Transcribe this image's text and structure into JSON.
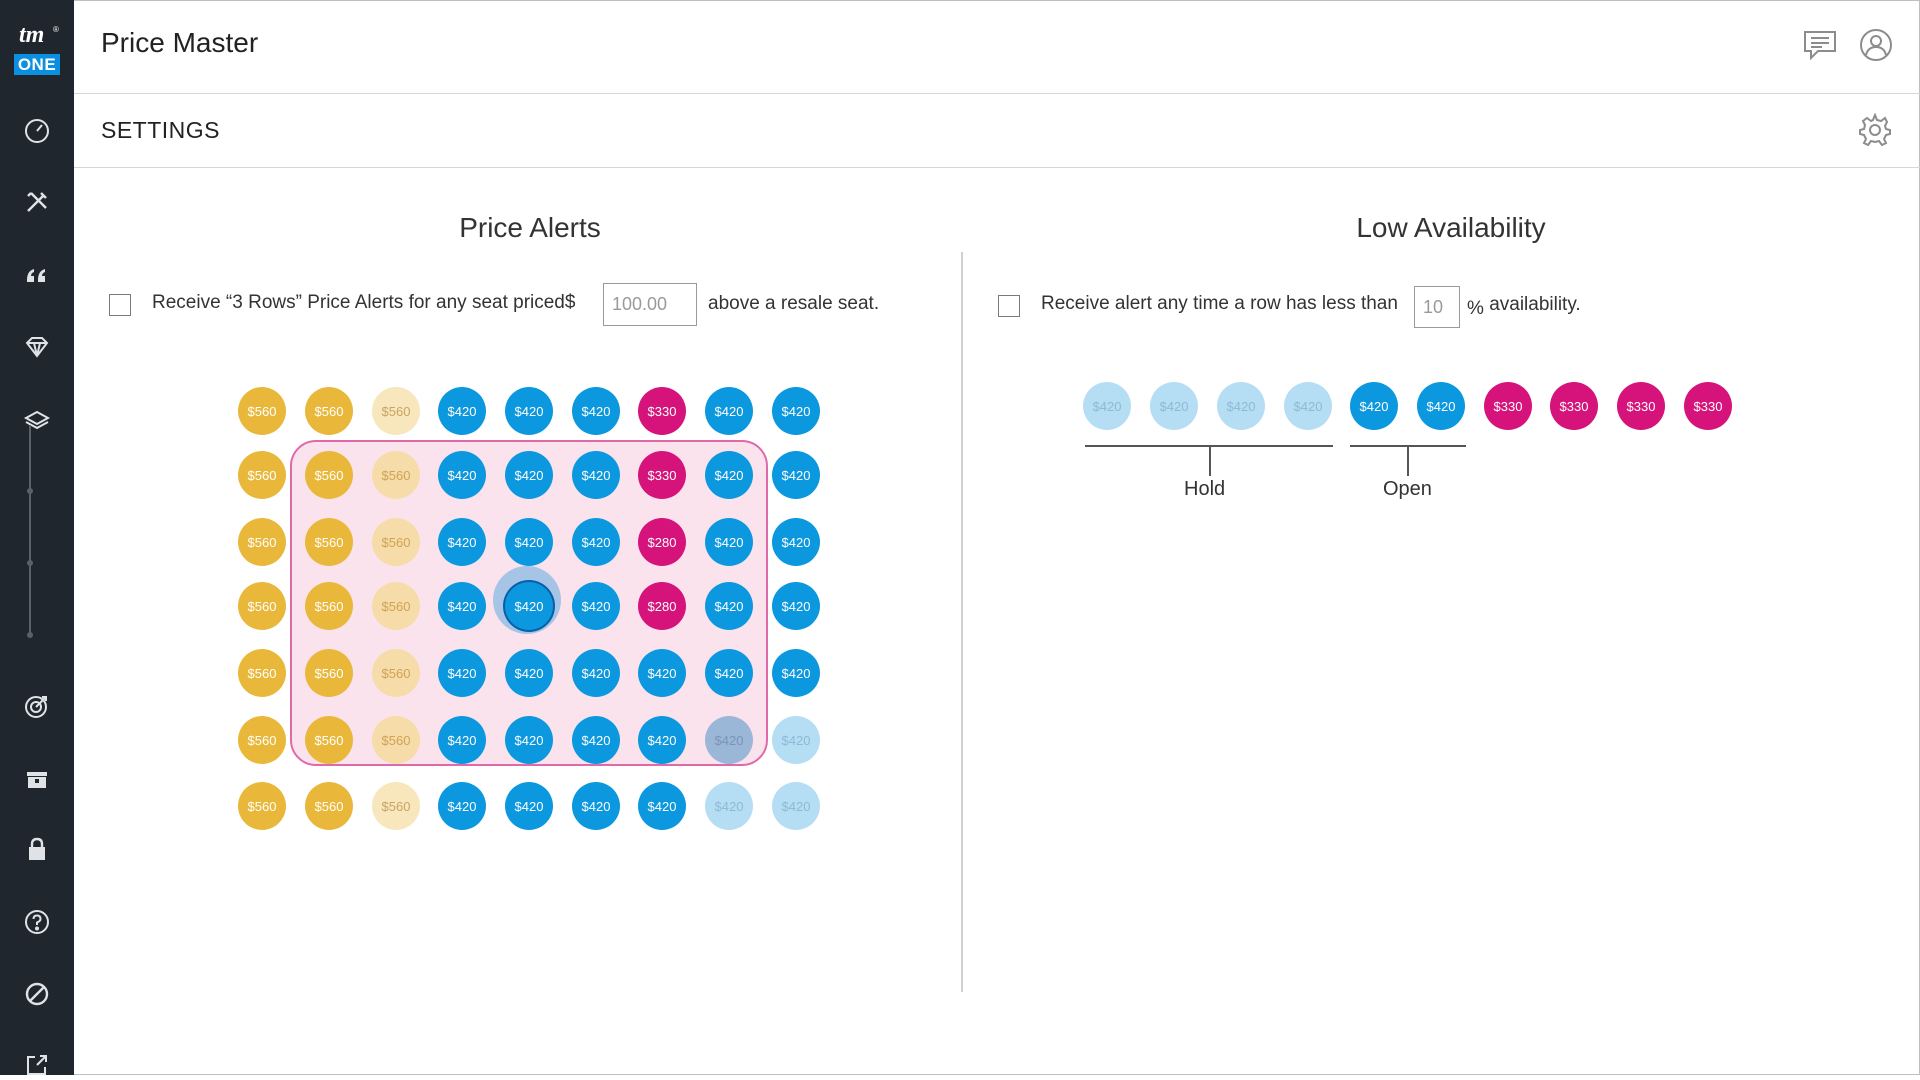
{
  "logo": {
    "tm": "tm",
    "reg": "®",
    "one": "ONE"
  },
  "sidebar": {
    "items": [
      {
        "name": "dashboard",
        "icon": "speedometer-icon"
      },
      {
        "name": "tools",
        "icon": "tools-icon"
      },
      {
        "name": "quotes",
        "icon": "quote-icon"
      },
      {
        "name": "premium",
        "icon": "diamond-icon"
      },
      {
        "name": "layers",
        "icon": "layers-icon"
      },
      {
        "name": "targets",
        "icon": "target-icon"
      },
      {
        "name": "box-office",
        "icon": "box-icon"
      },
      {
        "name": "security",
        "icon": "lock-icon"
      },
      {
        "name": "help",
        "icon": "help-icon"
      },
      {
        "name": "no-connection",
        "icon": "blocked-icon"
      },
      {
        "name": "external",
        "icon": "external-link-icon"
      }
    ]
  },
  "header": {
    "title": "Price Master",
    "icons": [
      "chat-icon",
      "user-icon"
    ]
  },
  "subheader": {
    "title": "SETTINGS",
    "icon": "gear-icon"
  },
  "price_alerts": {
    "title": "Price Alerts",
    "label_before": "Receive “3 Rows” Price Alerts for any seat priced",
    "currency": "$",
    "threshold_value": "100.00",
    "label_after": "above a resale seat.",
    "seat_rows": [
      [
        "$560",
        "$560",
        "$560",
        "$420",
        "$420",
        "$420",
        "$330",
        "$420",
        "$420"
      ],
      [
        "$560",
        "$560",
        "$560",
        "$420",
        "$420",
        "$420",
        "$330",
        "$420",
        "$420"
      ],
      [
        "$560",
        "$560",
        "$560",
        "$420",
        "$420",
        "$420",
        "$280",
        "$420",
        "$420"
      ],
      [
        "$560",
        "$560",
        "$560",
        "$420",
        "$420",
        "$420",
        "$280",
        "$420",
        "$420"
      ],
      [
        "$560",
        "$560",
        "$560",
        "$420",
        "$420",
        "$420",
        "$420",
        "$420",
        "$420"
      ],
      [
        "$560",
        "$560",
        "$560",
        "$420",
        "$420",
        "$420",
        "$420",
        "$420",
        "$420"
      ],
      [
        "$560",
        "$560",
        "$560",
        "$420",
        "$420",
        "$420",
        "$420",
        "$420",
        "$420"
      ]
    ]
  },
  "low_availability": {
    "title": "Low Availability",
    "label_before": "Receive alert any time a row has less than",
    "percent_value": "10",
    "label_after_symbol": "%",
    "label_after": "availability.",
    "seats": [
      "$420",
      "$420",
      "$420",
      "$420",
      "$420",
      "$420",
      "$330",
      "$330",
      "$330",
      "$330"
    ],
    "legend": {
      "hold": "Hold",
      "open": "Open"
    }
  },
  "colors": {
    "sidebar_bg": "#1f262d",
    "brand_blue": "#0b8fe0",
    "seat_gold": "#e9b83a",
    "seat_blue": "#0b98df",
    "seat_pink": "#d5137a",
    "highlight_border": "#e06aa9",
    "highlight_fill": "#fbe3ee"
  }
}
